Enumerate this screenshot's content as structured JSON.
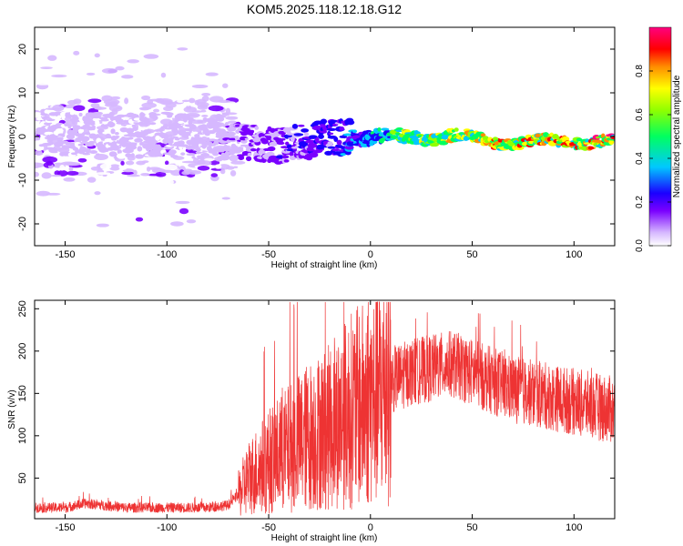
{
  "title": "KOM5.2025.118.12.18.G12",
  "chart_data": [
    {
      "type": "heatmap",
      "title": "KOM5.2025.118.12.18.G12",
      "xlabel": "Height of straight line (km)",
      "ylabel": "Frequency (Hz)",
      "xlim": [
        -165,
        120
      ],
      "ylim": [
        -25,
        25
      ],
      "xticks": [
        -150,
        -100,
        -50,
        0,
        50,
        100
      ],
      "yticks": [
        -20,
        -10,
        0,
        10,
        20
      ],
      "colorbar": {
        "label": "Normalized spectral amplitude",
        "range": [
          0,
          1
        ],
        "ticks": [
          "0.0",
          "0.2",
          "0.4",
          "0.6",
          "0.8"
        ],
        "colors": [
          "#ffffff",
          "#7a00ff",
          "#1b00ff",
          "#00c8ff",
          "#00ff60",
          "#ffff00",
          "#ff8c00",
          "#ff0000",
          "#ff0080"
        ]
      },
      "description_points": [
        {
          "x": -160,
          "freq": 1.0,
          "amp": 0.08
        },
        {
          "x": -140,
          "freq": 0.5,
          "amp": 0.09
        },
        {
          "x": -120,
          "freq": 0.0,
          "amp": 0.09
        },
        {
          "x": -100,
          "freq": 0.5,
          "amp": 0.1
        },
        {
          "x": -80,
          "freq": 0.0,
          "amp": 0.1
        },
        {
          "x": -60,
          "freq": -1.5,
          "amp": 0.18
        },
        {
          "x": -40,
          "freq": -2.0,
          "amp": 0.2
        },
        {
          "x": -20,
          "freq": 0.0,
          "amp": 0.25
        },
        {
          "x": 0,
          "freq": -0.5,
          "amp": 0.4
        },
        {
          "x": 20,
          "freq": 0.0,
          "amp": 0.65
        },
        {
          "x": 40,
          "freq": 0.0,
          "amp": 0.7
        },
        {
          "x": 60,
          "freq": -1.0,
          "amp": 0.75
        },
        {
          "x": 80,
          "freq": -1.5,
          "amp": 0.78
        },
        {
          "x": 100,
          "freq": -1.0,
          "amp": 0.8
        },
        {
          "x": 120,
          "freq": -1.0,
          "amp": 0.82
        }
      ]
    },
    {
      "type": "line",
      "xlabel": "Height of straight line (km)",
      "ylabel": "SNR (v/v)",
      "xlim": [
        -165,
        120
      ],
      "ylim": [
        2,
        260
      ],
      "xticks": [
        -150,
        -100,
        -50,
        0,
        50,
        100
      ],
      "yticks": [
        50,
        100,
        150,
        200,
        250
      ],
      "color": "#ee3333",
      "series": [
        {
          "x": [
            -165,
            -150,
            -140,
            -120,
            -100,
            -80,
            -70,
            -65,
            -60,
            -50,
            -40,
            -30,
            -20,
            -10,
            0,
            10,
            20,
            30,
            40,
            50,
            60,
            70,
            80,
            90,
            100,
            110,
            120
          ],
          "values": [
            15,
            15,
            20,
            15,
            15,
            15,
            18,
            30,
            50,
            70,
            85,
            100,
            110,
            130,
            140,
            165,
            175,
            180,
            185,
            175,
            165,
            155,
            150,
            145,
            140,
            135,
            130
          ]
        }
      ]
    }
  ]
}
